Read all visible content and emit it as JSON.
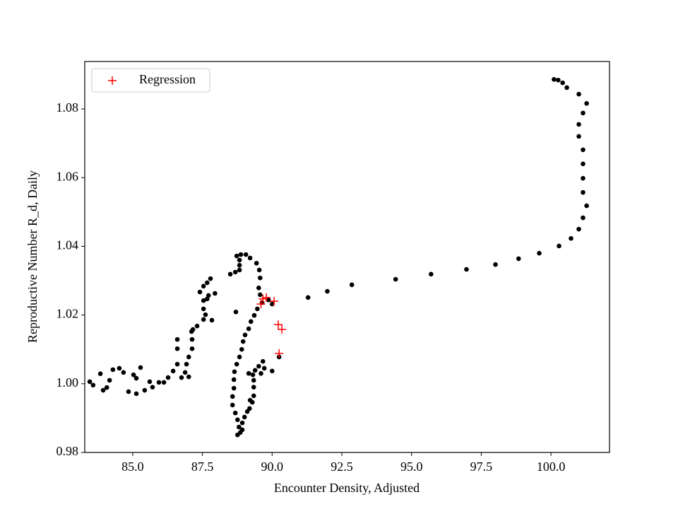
{
  "chart_data": {
    "type": "scatter",
    "x_label": "Encounter Density, Adjusted",
    "y_label": "Reproductive Number R_d, Daily",
    "xlim": [
      83.28,
      102.1
    ],
    "ylim": [
      0.98,
      1.0938
    ],
    "xticks": [
      {
        "value": 85,
        "label": "85.0"
      },
      87.5,
      {
        "value": 90,
        "label": "90.0"
      },
      92.5,
      {
        "value": 95,
        "label": "95.0"
      },
      97.5,
      {
        "value": 100,
        "label": "100.0"
      }
    ],
    "yticks": [
      0.98,
      {
        "value": 1,
        "label": "1.00"
      },
      1.02,
      1.04,
      1.06,
      1.08
    ],
    "legend": "upper left",
    "series": [
      {
        "color": "#000000",
        "marker": "o",
        "x": [
          100.11,
          100.26,
          100.42,
          100.57,
          101.0,
          101.28,
          101.15,
          101.0,
          101.0,
          101.15,
          101.15,
          101.15,
          101.15,
          101.28,
          101.15,
          101.0,
          100.72,
          100.29,
          99.58,
          98.84,
          98.01,
          96.97,
          95.7,
          94.43,
          92.86,
          91.98,
          91.29,
          90.0,
          89.87,
          89.64,
          89.57,
          89.52,
          89.57,
          89.54,
          89.44,
          89.21,
          89.06,
          88.88,
          88.73,
          88.83,
          88.83,
          88.83,
          88.68,
          88.5,
          88.7,
          89.47,
          89.36,
          89.24,
          89.16,
          89.03,
          88.96,
          88.91,
          88.83,
          88.73,
          88.65,
          88.63,
          88.63,
          88.58,
          88.58,
          88.68,
          88.76,
          88.81,
          88.76,
          88.86,
          88.93,
          88.93,
          89.01,
          89.11,
          89.19,
          89.29,
          89.34,
          89.34,
          89.34,
          89.31,
          89.16,
          89.39,
          89.52,
          89.67,
          89.6,
          89.72,
          90.0,
          90.25,
          89.21,
          83.46,
          83.58,
          83.84,
          83.94,
          84.07,
          84.17,
          84.29,
          84.52,
          84.67,
          84.85,
          85.03,
          85.13,
          85.13,
          85.28,
          85.43,
          85.61,
          85.71,
          85.94,
          86.12,
          86.27,
          86.45,
          86.6,
          86.6,
          86.6,
          86.75,
          86.88,
          86.93,
          87.01,
          87.01,
          87.13,
          87.13,
          87.16,
          87.31,
          87.54,
          87.54,
          87.54,
          87.41,
          87.54,
          87.67,
          87.79,
          87.95,
          87.84,
          87.61,
          87.67,
          87.72,
          87.11
        ],
        "values": [
          1.0886,
          1.0884,
          1.0876,
          1.0862,
          1.0843,
          1.0816,
          1.0788,
          1.0755,
          1.072,
          1.0681,
          1.064,
          1.0598,
          1.0557,
          1.0518,
          1.0483,
          1.045,
          1.0423,
          1.0401,
          1.038,
          1.0364,
          1.0347,
          1.0333,
          1.0319,
          1.0304,
          1.0288,
          1.0269,
          1.0251,
          1.0232,
          1.0244,
          1.0236,
          1.0259,
          1.0279,
          1.0308,
          1.0331,
          1.0351,
          1.0366,
          1.0376,
          1.0376,
          1.0372,
          1.036,
          1.0345,
          1.0331,
          1.0325,
          1.0319,
          1.0209,
          1.0218,
          1.0199,
          1.0181,
          1.016,
          1.0142,
          1.0123,
          1.01,
          1.0078,
          1.0057,
          1.0035,
          1.0012,
          0.9987,
          0.9963,
          0.9938,
          0.9915,
          0.9895,
          0.9874,
          0.9851,
          0.9858,
          0.9866,
          0.9886,
          0.9903,
          0.9919,
          0.9928,
          0.9946,
          0.9965,
          0.999,
          1.001,
          1.0026,
          1.003,
          1.0039,
          1.0051,
          1.0065,
          1.003,
          1.0045,
          1.0037,
          1.0078,
          0.9952,
          1.0006,
          0.9996,
          1.0029,
          0.9981,
          0.9989,
          1.001,
          1.0041,
          1.0045,
          1.0033,
          0.9977,
          1.0026,
          0.9971,
          1.0016,
          1.0047,
          0.9981,
          1.0006,
          0.999,
          1.0004,
          1.0004,
          1.0018,
          1.0037,
          1.0057,
          1.0102,
          1.0129,
          1.0018,
          1.0033,
          1.0057,
          1.0078,
          1.002,
          1.0102,
          1.0129,
          1.0158,
          1.0168,
          1.0187,
          1.0218,
          1.0242,
          1.0267,
          1.0284,
          1.0294,
          1.0306,
          1.0263,
          1.0185,
          1.0201,
          1.0247,
          1.0257,
          1.0152
        ]
      },
      {
        "name": "Regression",
        "color": "#ff0000",
        "marker": "+",
        "x": [
          89.67,
          89.79,
          90.07,
          89.6,
          90.22,
          90.35,
          90.25
        ],
        "values": [
          1.0247,
          1.0251,
          1.024,
          1.0232,
          1.0172,
          1.0158,
          1.0088
        ]
      }
    ]
  }
}
